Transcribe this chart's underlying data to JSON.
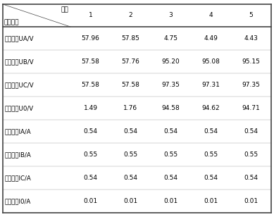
{
  "header_diagonal_top": "数据",
  "header_diagonal_bottom": "时间点：",
  "col_headers": [
    "1",
    "2",
    "3",
    "4",
    "5"
  ],
  "row_headers": [
    "机端电压UA/V",
    "机端电压UB/V",
    "机端电压UC/V",
    "机端电压U0/V",
    "机端电流IA/A",
    "机端电流IB/A",
    "机端电流IC/A",
    "机端电流I0/A"
  ],
  "table_data": [
    [
      "57.96",
      "57.85",
      "4.75",
      "4.49",
      "4.43"
    ],
    [
      "57.58",
      "57.76",
      "95.20",
      "95.08",
      "95.15"
    ],
    [
      "57.58",
      "57.58",
      "97.35",
      "97.31",
      "97.35"
    ],
    [
      "1.49",
      "1.76",
      "94.58",
      "94.62",
      "94.71"
    ],
    [
      "0.54",
      "0.54",
      "0.54",
      "0.54",
      "0.54"
    ],
    [
      "0.55",
      "0.55",
      "0.55",
      "0.55",
      "0.55"
    ],
    [
      "0.54",
      "0.54",
      "0.54",
      "0.54",
      "0.54"
    ],
    [
      "0.01",
      "0.01",
      "0.01",
      "0.01",
      "0.01"
    ]
  ],
  "bg_color": "#ffffff",
  "text_color": "#000000",
  "line_color": "#444444",
  "font_size": 6.5,
  "header_font_size": 6.5
}
